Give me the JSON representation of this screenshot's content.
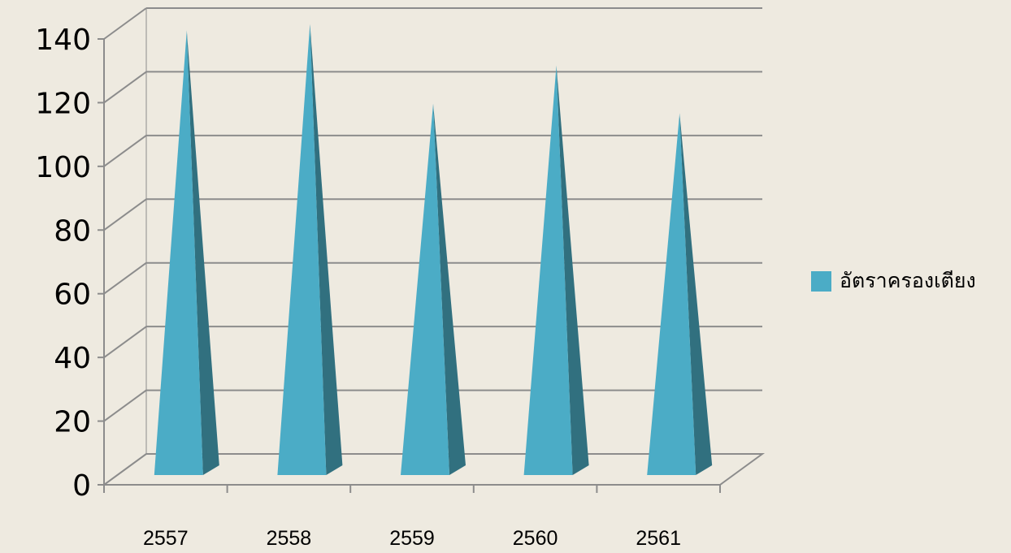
{
  "chart_data": {
    "type": "bar",
    "style": "3d-pyramid",
    "title": "",
    "xlabel": "",
    "ylabel": "",
    "categories": [
      "2557",
      "2558",
      "2559",
      "2560",
      "2561"
    ],
    "series": [
      {
        "name": "อัตราครองเตียง",
        "values": [
          133,
          135,
          110,
          122,
          107
        ],
        "color": "#4BACC6"
      }
    ],
    "ylim": [
      0,
      140
    ],
    "yticks": [
      "0",
      "20",
      "40",
      "60",
      "80",
      "100",
      "120",
      "140"
    ],
    "grid": true,
    "legend_position": "right"
  },
  "colors": {
    "background": "#EEEAE0",
    "gridline": "#8C8C8C",
    "bar_front": "#4BACC6",
    "bar_side": "#31707F"
  }
}
